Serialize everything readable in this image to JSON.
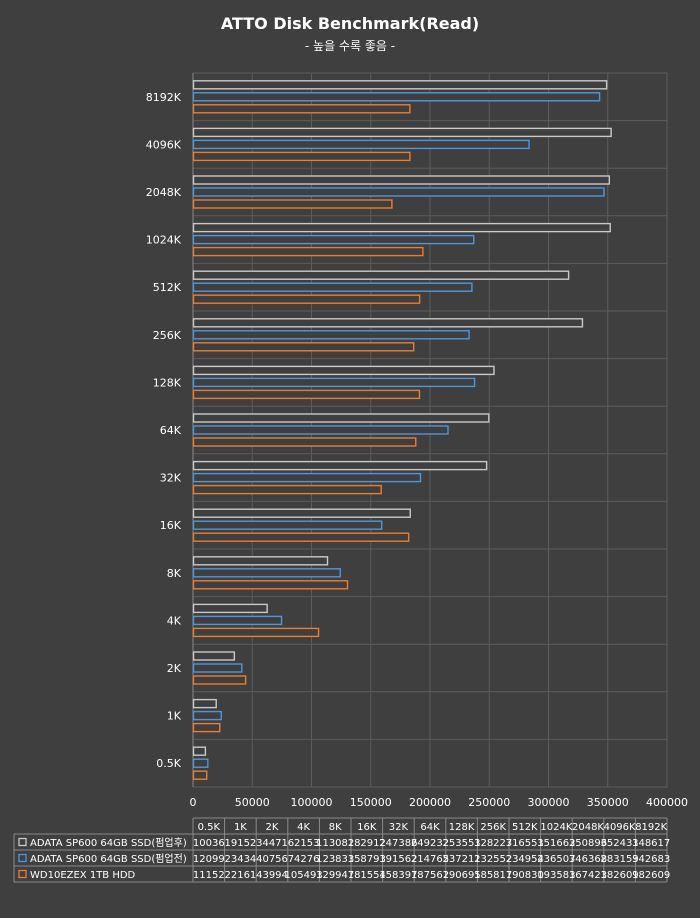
{
  "chart_data": {
    "type": "bar",
    "orientation": "horizontal",
    "title": "ATTO Disk Benchmark(Read)",
    "subtitle": "- 높을 수록 좋음 -",
    "categories": [
      "0.5K",
      "1K",
      "2K",
      "4K",
      "8K",
      "16K",
      "32K",
      "64K",
      "128K",
      "256K",
      "512K",
      "1024K",
      "2048K",
      "4096K",
      "8192K"
    ],
    "xlim": [
      0,
      400000
    ],
    "xticks": [
      0,
      50000,
      100000,
      150000,
      200000,
      250000,
      300000,
      350000,
      400000
    ],
    "grid": true,
    "data_table": true,
    "series": [
      {
        "name": "ADATA SP600 64GB SSD(펌업후)",
        "color": "#c9c9c9",
        "values": [
          10036,
          19152,
          34471,
          62153,
          113082,
          182912,
          247386,
          249232,
          253551,
          328227,
          316551,
          351662,
          350896,
          352431,
          348617
        ]
      },
      {
        "name": "ADATA SP600 64GB SSD(펌업전)",
        "color": "#4c97de",
        "values": [
          12099,
          23434,
          40756,
          74276,
          123833,
          158793,
          191562,
          214765,
          237211,
          232552,
          234954,
          236507,
          346368,
          283159,
          342683
        ]
      },
      {
        "name": "WD10EZEX 1TB HDD",
        "color": "#ee7d2a",
        "values": [
          11152,
          22161,
          43994,
          105493,
          129947,
          181554,
          158397,
          187562,
          190695,
          185817,
          190830,
          193583,
          167423,
          182609,
          182609
        ]
      }
    ]
  }
}
